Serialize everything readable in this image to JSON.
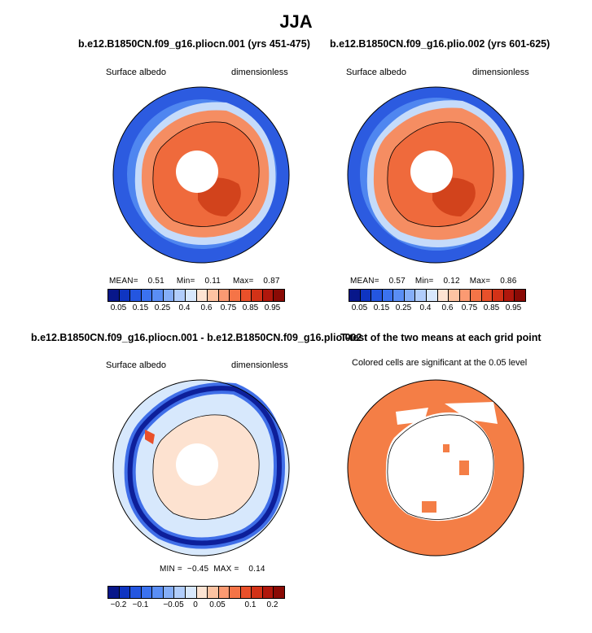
{
  "title": "JJA",
  "panels": [
    {
      "title": "b.e12.B1850CN.f09_g16.pliocn.001 (yrs 451-475)",
      "left_label": "Surface albedo",
      "right_label": "dimensionless",
      "stats": {
        "mean_label": "MEAN=",
        "mean": "0.51",
        "min_label": "Min=",
        "min": "0.11",
        "max_label": "Max=",
        "max": "0.87"
      }
    },
    {
      "title": "b.e12.B1850CN.f09_g16.plio.002 (yrs 601-625)",
      "left_label": "Surface albedo",
      "right_label": "dimensionless",
      "stats": {
        "mean_label": "MEAN=",
        "mean": "0.57",
        "min_label": "Min=",
        "min": "0.12",
        "max_label": "Max=",
        "max": "0.86"
      }
    },
    {
      "title": "b.e12.B1850CN.f09_g16.pliocn.001 - b.e12.B1850CN.f09_g16.plio.002",
      "left_label": "Surface albedo",
      "right_label": "dimensionless",
      "stats": {
        "min_label": "MIN =",
        "min": "−0.45",
        "max_label": "MAX =",
        "max": "0.14"
      }
    },
    {
      "title": "T-test of the two means at each grid point",
      "subtitle": "Colored cells are significant at the 0.05 level"
    }
  ],
  "colorbar_abs": {
    "colors": [
      "#08178a",
      "#0f35c2",
      "#2456e0",
      "#3b72ef",
      "#5a8ef5",
      "#85aef8",
      "#b1cdfb",
      "#d8e8fd",
      "#fde4d3",
      "#fdc3a2",
      "#fb9a72",
      "#f57447",
      "#e9502a",
      "#d33217",
      "#b0170c",
      "#8a0a05"
    ],
    "ticks": [
      "0.05",
      "0.15",
      "0.25",
      "0.4",
      "0.6",
      "0.75",
      "0.85",
      "0.95"
    ]
  },
  "colorbar_diff": {
    "colors": [
      "#08178a",
      "#0f35c2",
      "#2456e0",
      "#3b72ef",
      "#5a8ef5",
      "#85aef8",
      "#b1cdfb",
      "#d8e8fd",
      "#fde4d3",
      "#fdc3a2",
      "#fb9a72",
      "#f57447",
      "#e9502a",
      "#d33217",
      "#b0170c",
      "#8a0a05"
    ],
    "ticks": [
      "−0.2",
      "−0.1",
      "−0.05",
      "0",
      "0.05",
      "0.1",
      "0.2"
    ]
  },
  "map_colors": {
    "ocean": "#2c5be0",
    "ocean_light": "#4f86f0",
    "sea_ice_edge": "#c5dbfa",
    "ice_mid": "#f58d62",
    "land": "#ef6a3c",
    "land_deep": "#d2431c",
    "pole_hole": "#ffffff",
    "diff_bg": "#d7e8fc",
    "diff_ring_dark": "#0d1f9a",
    "diff_ring_mid": "#3f6ee8",
    "diff_land": "#fde2d0",
    "sig": "#f47e46"
  }
}
